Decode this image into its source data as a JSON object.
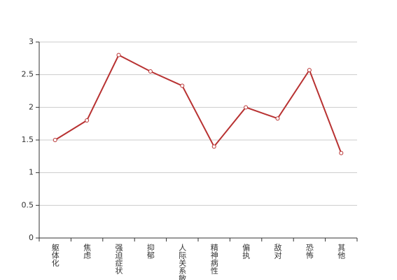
{
  "chart_data": {
    "type": "line",
    "categories": [
      "躯体化",
      "焦虑",
      "强迫症状",
      "抑郁",
      "人际关系敏感",
      "精神病性",
      "偏执",
      "敌对",
      "恐怖",
      "其他"
    ],
    "values": [
      1.5,
      1.8,
      2.8,
      2.55,
      2.33,
      1.4,
      2.0,
      1.83,
      2.57,
      1.3
    ],
    "color": "#b83232",
    "ylim": [
      0,
      3
    ],
    "yticks": [
      0,
      0.5,
      1,
      1.5,
      2,
      2.5,
      3
    ],
    "grid": true
  }
}
